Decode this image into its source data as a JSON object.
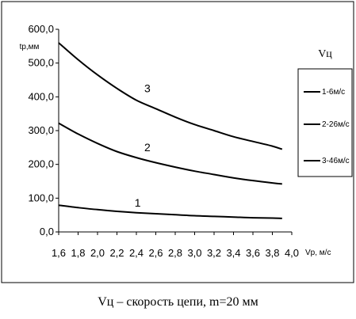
{
  "chart_data": {
    "type": "line",
    "title": "",
    "xlabel": "Vр, м/с",
    "ylabel": "tр,мм",
    "xlim": [
      1.6,
      4.0
    ],
    "ylim": [
      0,
      600
    ],
    "x_ticks": [
      "1,6",
      "1,8",
      "2,0",
      "2,2",
      "2,4",
      "2,6",
      "2,8",
      "3,0",
      "3,2",
      "3,4",
      "3,6",
      "3,8",
      "4,0"
    ],
    "y_ticks": [
      "0,0",
      "100,0",
      "200,0",
      "300,0",
      "400,0",
      "500,0",
      "600,0"
    ],
    "grid": false,
    "legend": {
      "title": "Vц",
      "placement": "right",
      "entries": [
        "1-6м/с",
        "2-26м/с",
        "3-46м/с"
      ]
    },
    "curve_labels": [
      "1",
      "2",
      "3"
    ],
    "series": [
      {
        "name": "1-6м/с",
        "x": [
          1.6,
          1.8,
          2.0,
          2.2,
          2.4,
          2.6,
          2.8,
          3.0,
          3.2,
          3.4,
          3.6,
          3.8,
          3.9
        ],
        "y": [
          79,
          72,
          66,
          61,
          57,
          54,
          51,
          48,
          46,
          44,
          42,
          41,
          40
        ]
      },
      {
        "name": "2-26м/с",
        "x": [
          1.6,
          1.8,
          2.0,
          2.2,
          2.4,
          2.6,
          2.8,
          3.0,
          3.2,
          3.4,
          3.6,
          3.8,
          3.9
        ],
        "y": [
          322,
          290,
          262,
          238,
          220,
          205,
          192,
          180,
          170,
          160,
          152,
          145,
          142
        ]
      },
      {
        "name": "3-46м/с",
        "x": [
          1.6,
          1.8,
          2.0,
          2.2,
          2.4,
          2.6,
          2.8,
          3.0,
          3.2,
          3.4,
          3.6,
          3.8,
          3.9
        ],
        "y": [
          560,
          510,
          465,
          425,
          390,
          365,
          340,
          318,
          300,
          282,
          268,
          254,
          245
        ]
      }
    ]
  },
  "caption": "Vц – скорость цепи, m=20 мм"
}
